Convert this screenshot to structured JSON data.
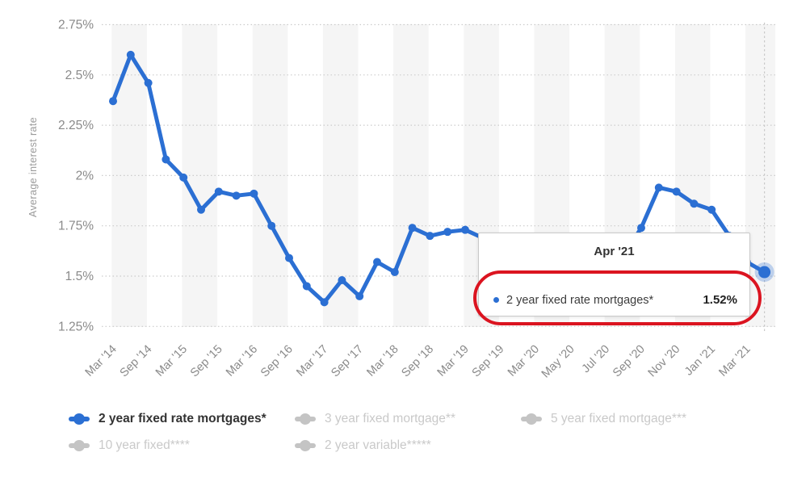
{
  "chart_data": {
    "type": "line",
    "title": "",
    "xlabel": "",
    "ylabel": "Average interest rate",
    "ylim": [
      1.25,
      2.75
    ],
    "grid": "dotted horizontal gridlines, alternating vertical background bands",
    "legend_position": "bottom",
    "y_ticks": [
      {
        "label": "2.75%",
        "value": 2.75
      },
      {
        "label": "2.5%",
        "value": 2.5
      },
      {
        "label": "2.25%",
        "value": 2.25
      },
      {
        "label": "2%",
        "value": 2.0
      },
      {
        "label": "1.75%",
        "value": 1.75
      },
      {
        "label": "1.5%",
        "value": 1.5
      },
      {
        "label": "1.25%",
        "value": 1.25
      }
    ],
    "x_ticks": [
      {
        "label": "Mar '14",
        "index": 0
      },
      {
        "label": "Sep '14",
        "index": 2
      },
      {
        "label": "Mar '15",
        "index": 4
      },
      {
        "label": "Sep '15",
        "index": 6
      },
      {
        "label": "Mar '16",
        "index": 8
      },
      {
        "label": "Sep '16",
        "index": 10
      },
      {
        "label": "Mar '17",
        "index": 12
      },
      {
        "label": "Sep '17",
        "index": 14
      },
      {
        "label": "Mar '18",
        "index": 16
      },
      {
        "label": "Sep '18",
        "index": 18
      },
      {
        "label": "Mar '19",
        "index": 20
      },
      {
        "label": "Sep '19",
        "index": 22
      },
      {
        "label": "Mar '20",
        "index": 24
      },
      {
        "label": "May '20",
        "index": 26
      },
      {
        "label": "Jul '20",
        "index": 28
      },
      {
        "label": "Sep '20",
        "index": 30
      },
      {
        "label": "Nov '20",
        "index": 32
      },
      {
        "label": "Jan '21",
        "index": 34
      },
      {
        "label": "Mar '21",
        "index": 36
      }
    ],
    "series": [
      {
        "name": "2 year fixed rate mortgages*",
        "color": "#2b6fd3",
        "labels": [
          "Mar '14",
          "Jun '14",
          "Sep '14",
          "Dec '14",
          "Mar '15",
          "Jun '15",
          "Sep '15",
          "Dec '15",
          "Mar '16",
          "Jun '16",
          "Sep '16",
          "Dec '16",
          "Mar '17",
          "Jun '17",
          "Sep '17",
          "Dec '17",
          "Mar '18",
          "Jun '18",
          "Sep '18",
          "Dec '18",
          "Mar '19",
          "Jun '19",
          "Sep '19",
          "Dec '19",
          "Mar '20",
          "Apr '20",
          "May '20",
          "Jun '20",
          "Jul '20",
          "Aug '20",
          "Sep '20",
          "Oct '20",
          "Nov '20",
          "Dec '20",
          "Jan '21",
          "Feb '21",
          "Mar '21",
          "Apr '21"
        ],
        "values": [
          2.37,
          2.6,
          2.46,
          2.08,
          1.99,
          1.83,
          1.92,
          1.9,
          1.91,
          1.75,
          1.59,
          1.45,
          1.37,
          1.48,
          1.4,
          1.57,
          1.52,
          1.74,
          1.7,
          1.72,
          1.73,
          1.69,
          1.66,
          1.64,
          1.6,
          1.54,
          1.49,
          1.46,
          1.5,
          1.6,
          1.74,
          1.94,
          1.92,
          1.86,
          1.83,
          1.7,
          1.57,
          1.52
        ]
      }
    ],
    "highlighted_point": {
      "label": "Apr '21",
      "value": 1.52,
      "index": 37
    }
  },
  "tooltip": {
    "title": "Apr '21",
    "series_label": "2 year fixed rate mortgages*",
    "value": "1.52%"
  },
  "legend": {
    "items": [
      {
        "label": "2 year fixed rate mortgages*",
        "active": true,
        "color": "#2b6fd3"
      },
      {
        "label": "3 year fixed mortgage**",
        "active": false,
        "color": "#c4c4c4"
      },
      {
        "label": "5 year fixed mortgage***",
        "active": false,
        "color": "#c4c4c4"
      },
      {
        "label": "10 year fixed****",
        "active": false,
        "color": "#c4c4c4"
      },
      {
        "label": "2 year variable*****",
        "active": false,
        "color": "#c4c4c4"
      }
    ]
  },
  "colors": {
    "series_blue": "#2b6fd3",
    "halo_blue": "#2b6fd3",
    "inactive_gray": "#c4c4c4",
    "annotation_red": "#db1420",
    "gridline": "#cccccc",
    "band_gray": "#f5f5f5",
    "tick_text": "#8a8a8a",
    "crosshair": "#c9c9c9"
  }
}
